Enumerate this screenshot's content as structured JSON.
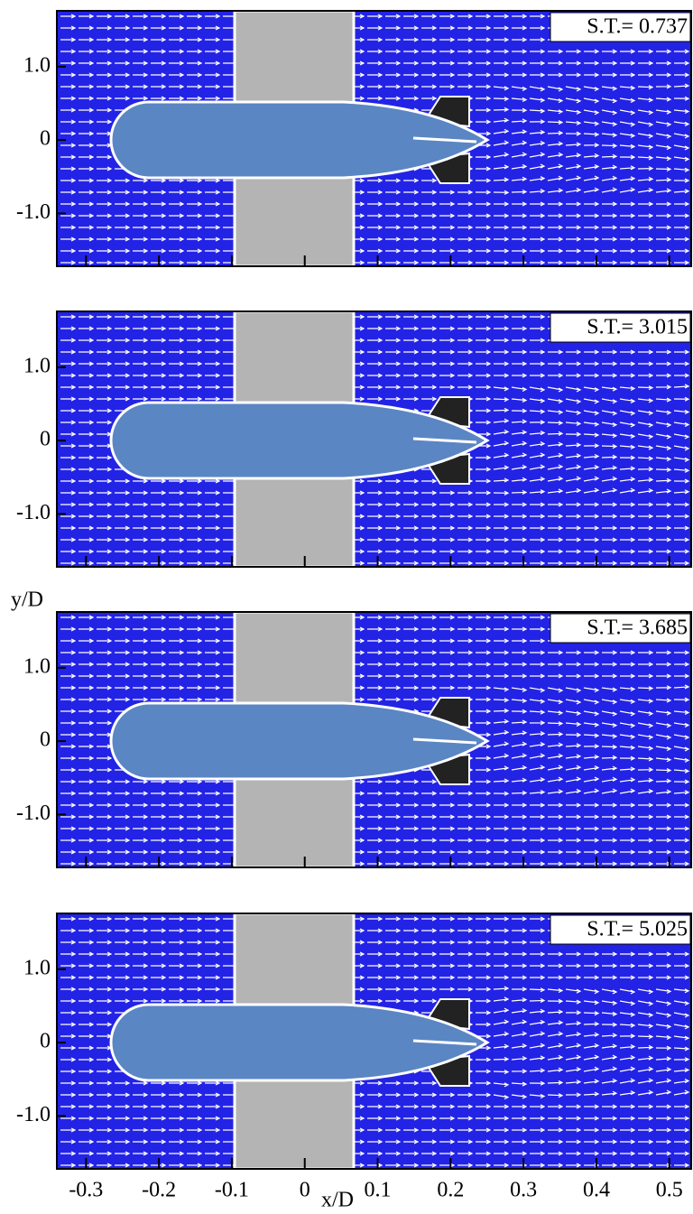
{
  "chart_data": [
    {
      "type": "vector",
      "annotation": "S.T.= 0.737",
      "xlim": [
        -0.34,
        0.53
      ],
      "xticks": [
        -0.3,
        -0.2,
        -0.1,
        0,
        0.1,
        0.2,
        0.3,
        0.4,
        0.5
      ],
      "ylim": [
        -1.72,
        1.76
      ],
      "yticks": [
        {
          "value": -1,
          "label": "-1.0"
        },
        0,
        {
          "value": 1,
          "label": "1.0"
        }
      ]
    },
    {
      "type": "vector",
      "annotation": "S.T.= 3.015",
      "xlim": [
        -0.34,
        0.53
      ],
      "xticks": [
        -0.3,
        -0.2,
        -0.1,
        0,
        0.1,
        0.2,
        0.3,
        0.4,
        0.5
      ],
      "ylim": [
        -1.72,
        1.76
      ],
      "yticks": [
        {
          "value": -1,
          "label": "-1.0"
        },
        0,
        {
          "value": 1,
          "label": "1.0"
        }
      ]
    },
    {
      "type": "vector",
      "annotation": "S.T.= 3.685",
      "ylabel": "y/D",
      "xlim": [
        -0.34,
        0.53
      ],
      "xticks": [
        -0.3,
        -0.2,
        -0.1,
        0,
        0.1,
        0.2,
        0.3,
        0.4,
        0.5
      ],
      "ylim": [
        -1.72,
        1.76
      ],
      "yticks": [
        {
          "value": -1,
          "label": "-1.0"
        },
        0,
        {
          "value": 1,
          "label": "1.0"
        }
      ]
    },
    {
      "type": "vector",
      "annotation": "S.T.= 5.025",
      "xlabel": "x/D",
      "xlim": [
        -0.34,
        0.53
      ],
      "xticks": [
        -0.3,
        -0.2,
        -0.1,
        0,
        0.1,
        0.2,
        0.3,
        0.4,
        0.5
      ],
      "ylim": [
        -1.72,
        1.76
      ],
      "yticks": [
        {
          "value": -1,
          "label": "-1.0"
        },
        0,
        {
          "value": 1,
          "label": "1.0"
        }
      ]
    }
  ]
}
